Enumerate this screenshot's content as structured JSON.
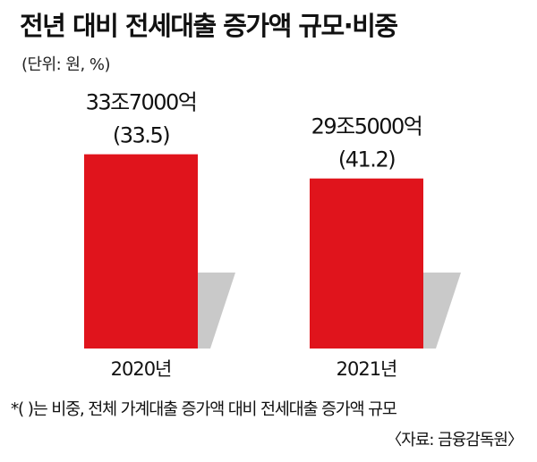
{
  "title": "전년 대비 전세대출 증가액 규모·비중",
  "unit_note": "(단위: 원, %)",
  "footnote": "*( )는 비중, 전체 가계대출 증가액 대비 전세대출 증가액 규모",
  "source": "〈자료: 금융감독원〉",
  "colors": {
    "bar": "#e0141c",
    "shadow": "#c9c9c9"
  },
  "chart_data": {
    "type": "bar",
    "title": "전년 대비 전세대출 증가액 규모·비중",
    "xlabel": "",
    "ylabel": "",
    "categories": [
      "2020년",
      "2021년"
    ],
    "values": [
      337000,
      295000
    ],
    "value_labels": [
      "33조7000억",
      "29조5000억"
    ],
    "share_labels": [
      "(33.5)",
      "(41.2)"
    ],
    "ylim": [
      0,
      400000
    ],
    "grid": false,
    "legend": "none"
  }
}
